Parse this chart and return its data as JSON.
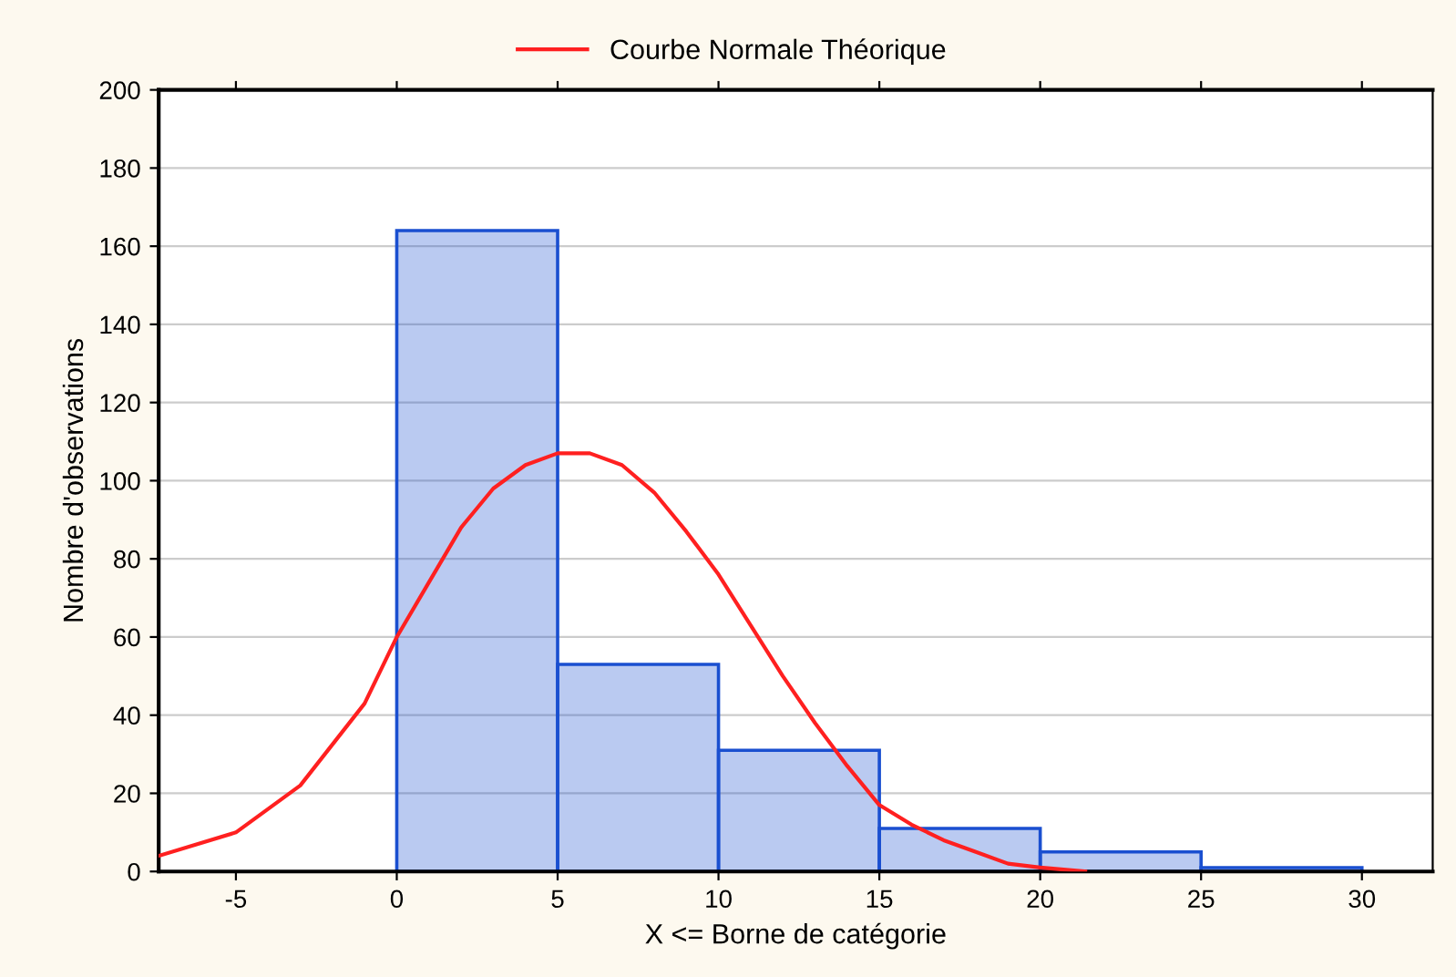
{
  "chart_data": {
    "type": "histogram",
    "xlabel": "X <= Borne de catégorie",
    "ylabel": "Nombre d'observations",
    "bins": [
      0,
      5,
      10,
      15,
      20,
      25,
      30
    ],
    "series": [
      {
        "color": "#1a4fd0",
        "values": [
          164,
          53,
          31,
          11,
          5,
          1
        ]
      },
      {
        "type": "line",
        "name": "Courbe Normale Théorique",
        "color": "#ff2020",
        "x": [
          -7.4,
          -5,
          -3,
          -1,
          0,
          1,
          2,
          3,
          4,
          5,
          6,
          7,
          8,
          9,
          10,
          11,
          12,
          13,
          14,
          15,
          16,
          17,
          18,
          19,
          20,
          21.4
        ],
        "values": [
          4,
          10,
          22,
          43,
          60,
          74,
          88,
          98,
          104,
          107,
          107,
          104,
          97,
          87,
          76,
          63,
          50,
          38,
          27,
          17,
          12,
          8,
          5,
          2,
          1,
          0
        ]
      }
    ],
    "xlim": [
      -7.4,
      32.2
    ],
    "ylim": [
      0,
      200
    ],
    "xticks": [
      -5,
      0,
      5,
      10,
      15,
      20,
      25,
      30
    ],
    "yticks": [
      0,
      20,
      40,
      60,
      80,
      100,
      120,
      140,
      160,
      180,
      200
    ],
    "grid": "y",
    "legend": "top"
  }
}
